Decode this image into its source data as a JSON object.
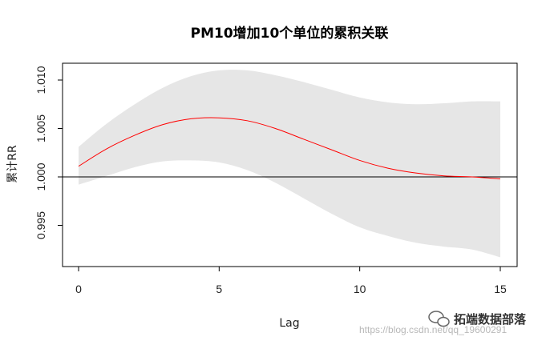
{
  "chart_data": {
    "type": "line",
    "title": "PM10增加10个单位的累积关联",
    "xlabel": "Lag",
    "ylabel": "累计RR",
    "xlim": [
      0,
      15
    ],
    "ylim": [
      0.9915,
      1.0115
    ],
    "x_ticks": [
      0,
      5,
      10,
      15
    ],
    "y_ticks": [
      0.995,
      1.0,
      1.005,
      1.01
    ],
    "y_tick_labels": [
      "0.995",
      "1.000",
      "1.005",
      "1.010"
    ],
    "reference_line": 1.0,
    "grid": false,
    "legend": "none",
    "x": [
      0,
      1,
      2,
      3,
      4,
      5,
      6,
      7,
      8,
      9,
      10,
      11,
      12,
      13,
      14,
      15
    ],
    "series": [
      {
        "values": [
          1.0011,
          1.0029,
          1.0043,
          1.0054,
          1.006,
          1.0061,
          1.0058,
          1.005,
          1.0039,
          1.0028,
          1.0017,
          1.0009,
          1.0004,
          1.0001,
          1.0,
          0.9998
        ],
        "color": "#ff0000"
      }
    ],
    "ci_lower": [
      0.9992,
      1.0001,
      1.001,
      1.0016,
      1.0017,
      1.0015,
      1.0007,
      0.9994,
      0.9978,
      0.9962,
      0.9948,
      0.9939,
      0.9932,
      0.9928,
      0.9925,
      0.9917
    ],
    "ci_upper": [
      1.0031,
      1.0055,
      1.0075,
      1.0092,
      1.0104,
      1.011,
      1.011,
      1.0105,
      1.0098,
      1.009,
      1.0082,
      1.0077,
      1.0075,
      1.0076,
      1.0078,
      1.0078
    ],
    "colors": {
      "ci_band": "#e6e6e6",
      "line": "#ff0000",
      "reference": "#000000",
      "axis": "#000000"
    }
  },
  "watermark": {
    "brand": "拓端数据部落",
    "url": "https://blog.csdn.net/qq_19600291"
  }
}
